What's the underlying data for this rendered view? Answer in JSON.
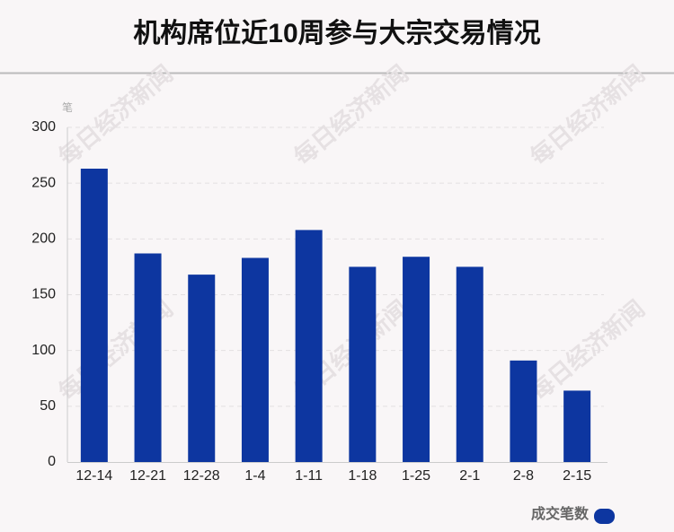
{
  "chart_data": {
    "type": "bar",
    "title": "机构席位近10周参与大宗交易情况",
    "y_unit": "笔",
    "watermark": "每日经济新闻",
    "categories": [
      "12-14",
      "12-21",
      "12-28",
      "1-4",
      "1-11",
      "1-18",
      "1-25",
      "2-1",
      "2-8",
      "2-15"
    ],
    "series": [
      {
        "name": "成交笔数",
        "color": "#0d36a0",
        "values": [
          263,
          187,
          168,
          183,
          208,
          175,
          184,
          175,
          91,
          64
        ]
      }
    ],
    "ylim": [
      0,
      300
    ],
    "yticks": [
      0,
      50,
      100,
      150,
      200,
      250,
      300
    ],
    "grid": true,
    "legend": "bottom-right"
  }
}
